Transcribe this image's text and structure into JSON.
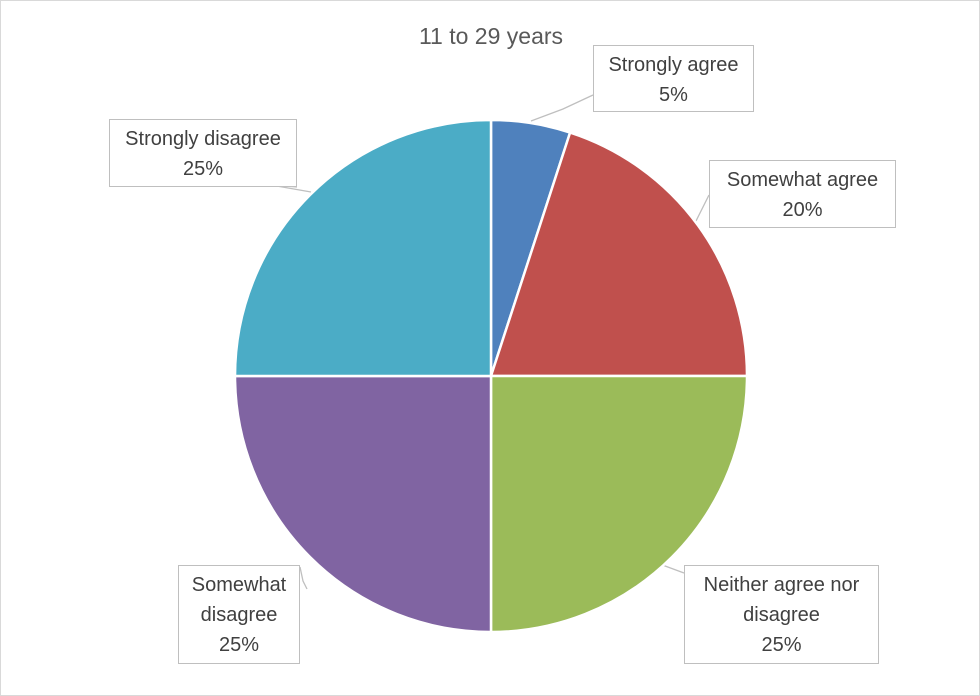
{
  "chart_data": {
    "type": "pie",
    "title": "11 to 29 years",
    "slices": [
      {
        "label": "Strongly agree",
        "value": 5,
        "value_label": "5%",
        "color": "#4F81BD"
      },
      {
        "label": "Somewhat agree",
        "value": 20,
        "value_label": "20%",
        "color": "#C0504D"
      },
      {
        "label": "Neither agree nor disagree",
        "value": 25,
        "value_label": "25%",
        "color": "#9BBB59"
      },
      {
        "label": "Somewhat disagree",
        "value": 25,
        "value_label": "25%",
        "color": "#8064A2"
      },
      {
        "label": "Strongly disagree",
        "value": 25,
        "value_label": "25%",
        "color": "#4BACC6"
      }
    ],
    "label_style": "callouts",
    "legend": "none"
  }
}
